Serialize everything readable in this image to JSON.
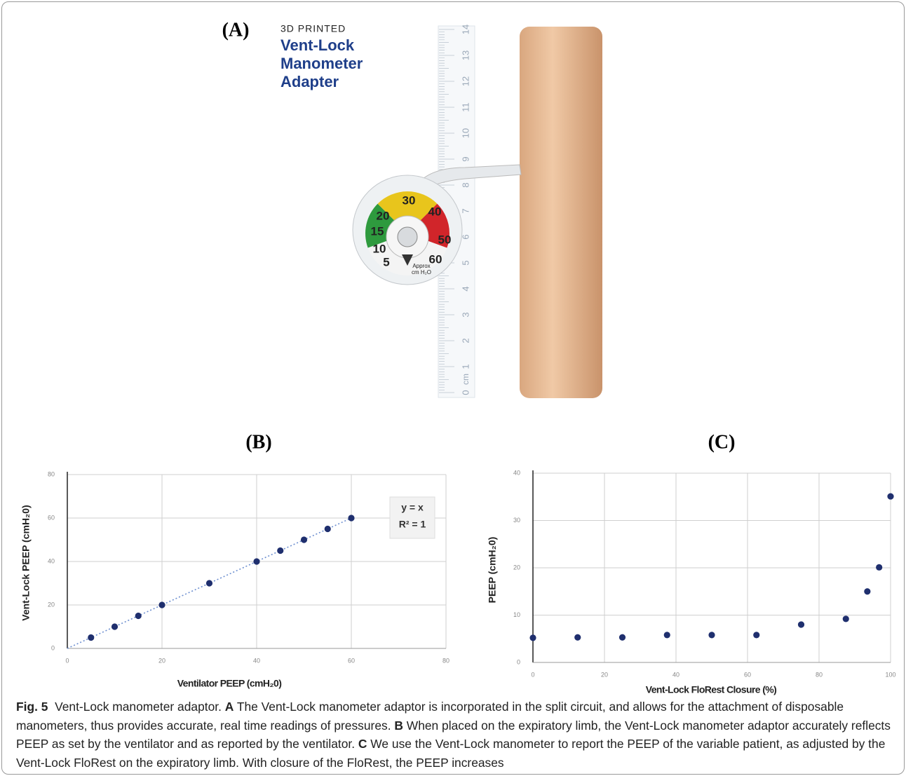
{
  "panel_a": {
    "label": "(A)",
    "brand": [
      "3D PRINTED",
      "Vent-Lock",
      "Manometer",
      "Adapter"
    ],
    "ruler_labels": [
      "0",
      "1",
      "2",
      "3",
      "4",
      "5",
      "6",
      "7",
      "8",
      "9",
      "10",
      "11",
      "12",
      "13",
      "14"
    ],
    "ruler_unit": "cm",
    "gauge_labels": [
      "5",
      "10",
      "15",
      "20",
      "30",
      "40",
      "50",
      "60"
    ],
    "gauge_note": [
      "Approx",
      "cm H₂O"
    ]
  },
  "chart_data": [
    {
      "type": "scatter",
      "panel_label": "(B)",
      "xlabel": "Ventilator PEEP (cmH₂0)",
      "ylabel": "Vent-Lock PEEP (cmH₂0)",
      "x": [
        5,
        10,
        15,
        20,
        30,
        40,
        45,
        50,
        55,
        60
      ],
      "values": [
        5,
        10,
        15,
        20,
        30,
        40,
        45,
        50,
        55,
        60
      ],
      "color": "#1f2f6e",
      "fit": {
        "x": [
          0,
          60
        ],
        "values": [
          0,
          60
        ],
        "color": "#6d8fd0"
      },
      "annotations": [
        "y = x",
        "R² = 1"
      ],
      "xlim": [
        0,
        80
      ],
      "ylim": [
        0,
        80
      ],
      "xticks": [
        0,
        20,
        40,
        60,
        80
      ],
      "yticks": [
        0,
        20,
        40,
        60,
        80
      ],
      "grid": true
    },
    {
      "type": "scatter",
      "panel_label": "(C)",
      "xlabel": "Vent-Lock FloRest Closure (%)",
      "ylabel": "PEEP (cmH₂0)",
      "x": [
        0,
        12.5,
        25,
        37.5,
        50,
        62.5,
        75,
        87.5,
        93.5,
        96.8,
        100
      ],
      "values": [
        5.2,
        5.3,
        5.3,
        5.8,
        5.8,
        5.8,
        8.0,
        9.2,
        15.0,
        20.1,
        35.1
      ],
      "color": "#1f2f6e",
      "xlim": [
        0,
        100
      ],
      "ylim": [
        0,
        40
      ],
      "xticks": [
        0,
        20,
        40,
        60,
        80,
        100
      ],
      "yticks": [
        0,
        10,
        20,
        30,
        40
      ],
      "grid": true
    }
  ],
  "caption": {
    "figure": "Fig. 5",
    "text": "Vent-Lock manometer adaptor.",
    "parts": [
      {
        "label": "A",
        "text": "The Vent-Lock manometer adaptor is incorporated in the split circuit, and allows for the attachment of disposable manometers, thus provides accurate, real time readings of pressures."
      },
      {
        "label": "B",
        "text": "When placed on the expiratory limb, the Vent-Lock manometer adaptor accurately reflects PEEP as set by the ventilator and as reported by the ventilator."
      },
      {
        "label": "C",
        "text": "We use the Vent-Lock manometer to report the PEEP of the variable patient, as adjusted by the Vent-Lock FloRest on the expiratory limb. With closure of the FloRest, the PEEP increases"
      }
    ]
  }
}
